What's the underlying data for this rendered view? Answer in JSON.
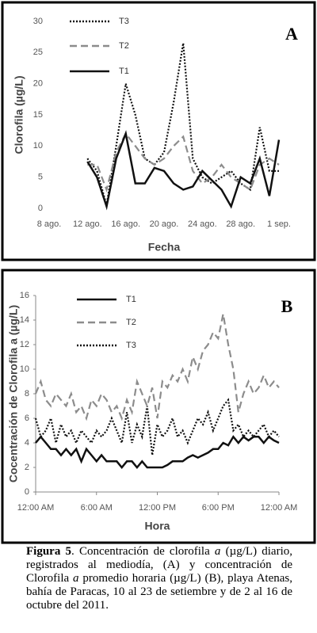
{
  "chart_data": [
    {
      "type": "line",
      "annotation": "A",
      "xlabel": "Fecha",
      "ylabel": "Clorofila (µg/L)",
      "legend": "upper left",
      "x": [
        12,
        13,
        14,
        15,
        16,
        17,
        18,
        19,
        20,
        21,
        22,
        23,
        24,
        25,
        26,
        27,
        28,
        29,
        30,
        31,
        32
      ],
      "xlim": [
        8,
        32
      ],
      "xticks": [
        {
          "value": 8,
          "label": "8 ago."
        },
        {
          "value": 12,
          "label": "12 ago."
        },
        {
          "value": 16,
          "label": "16 ago."
        },
        {
          "value": 20,
          "label": "20 ago."
        },
        {
          "value": 24,
          "label": "24 ago."
        },
        {
          "value": 28,
          "label": "28 ago."
        },
        {
          "value": 32,
          "label": "1 sep."
        }
      ],
      "ylim": [
        0,
        30
      ],
      "yticks": [
        0,
        5,
        10,
        15,
        20,
        25,
        30
      ],
      "series": [
        {
          "name": "T3",
          "color": "#111111",
          "style": "dotted",
          "values": [
            8,
            6,
            0.5,
            10,
            20,
            15,
            8,
            7,
            9,
            17,
            26.5,
            8,
            5,
            4,
            5,
            6,
            4,
            3,
            13,
            6,
            6
          ]
        },
        {
          "name": "T2",
          "color": "#8c8c8c",
          "style": "dashed",
          "values": [
            7,
            7,
            3,
            9,
            12,
            10,
            8,
            7,
            8,
            10,
            11.5,
            6,
            4,
            5,
            7,
            5,
            4,
            3,
            7,
            8,
            7
          ]
        },
        {
          "name": "T1",
          "color": "#111111",
          "style": "solid",
          "values": [
            7.5,
            5,
            0.3,
            8,
            12,
            4,
            4,
            6.5,
            6,
            4,
            3,
            3.5,
            6,
            4.5,
            3,
            0.3,
            5,
            4,
            8,
            2,
            11
          ]
        }
      ]
    },
    {
      "type": "line",
      "annotation": "B",
      "xlabel": "Hora",
      "ylabel": "Cocentración de Clorofila a (µg/L)",
      "legend": "upper left",
      "x": [
        0,
        0.5,
        1,
        1.5,
        2,
        2.5,
        3,
        3.5,
        4,
        4.5,
        5,
        5.5,
        6,
        6.5,
        7,
        7.5,
        8,
        8.5,
        9,
        9.5,
        10,
        10.5,
        11,
        11.5,
        12,
        12.5,
        13,
        13.5,
        14,
        14.5,
        15,
        15.5,
        16,
        16.5,
        17,
        17.5,
        18,
        18.5,
        19,
        19.5,
        20,
        20.5,
        21,
        21.5,
        22,
        22.5,
        23,
        23.5,
        24
      ],
      "xlim": [
        0,
        24
      ],
      "xticks": [
        {
          "value": 0,
          "label": "12:00 AM"
        },
        {
          "value": 6,
          "label": "6:00 AM"
        },
        {
          "value": 12,
          "label": "12:00 PM"
        },
        {
          "value": 18,
          "label": "6:00 PM"
        },
        {
          "value": 24,
          "label": "12:00 AM"
        }
      ],
      "ylim": [
        0,
        16
      ],
      "yticks": [
        0,
        2,
        4,
        6,
        8,
        10,
        12,
        14,
        16
      ],
      "series": [
        {
          "name": "T1",
          "color": "#111111",
          "style": "solid",
          "values": [
            4,
            4.5,
            4,
            3.5,
            3.5,
            3,
            3.5,
            3,
            3.5,
            2.5,
            3.5,
            3,
            2.5,
            3,
            2.5,
            2.5,
            2.5,
            2,
            2.5,
            2.5,
            2,
            2.5,
            2,
            2,
            2,
            2,
            2.2,
            2.5,
            2.5,
            2.5,
            2.8,
            3,
            2.8,
            3,
            3.2,
            3.5,
            3.5,
            4,
            3.8,
            4.5,
            4,
            4.5,
            4.2,
            4.5,
            4.5,
            4,
            4.5,
            4.2,
            4
          ]
        },
        {
          "name": "T2",
          "color": "#8c8c8c",
          "style": "dashed",
          "values": [
            8,
            9,
            7.5,
            7,
            8,
            7.5,
            7,
            8,
            6.5,
            7,
            6,
            7.5,
            7,
            8,
            7.5,
            6.5,
            7,
            6,
            7.5,
            6.5,
            9,
            8,
            7,
            8.5,
            6,
            9,
            8.5,
            9.5,
            9,
            10,
            9,
            11,
            10,
            11.5,
            12,
            13,
            12.5,
            14.5,
            12,
            10,
            6.5,
            8,
            9,
            8,
            8.5,
            9.5,
            8.5,
            9,
            8.5
          ]
        },
        {
          "name": "T3",
          "color": "#111111",
          "style": "dotted",
          "values": [
            6,
            4.5,
            5,
            6,
            4,
            5.5,
            4.5,
            5,
            4,
            5,
            4.5,
            4,
            5,
            4.5,
            5,
            6,
            5,
            4,
            6.5,
            4,
            5.5,
            4.5,
            7,
            3,
            5.5,
            4.5,
            5,
            6,
            4.5,
            5,
            4,
            5,
            6,
            5.5,
            6.5,
            5,
            6,
            7,
            7.5,
            5,
            5.5,
            4.5,
            5,
            4.5,
            5,
            5.5,
            4.5,
            5,
            4.5
          ]
        }
      ]
    }
  ],
  "caption": [
    "Figura 5",
    ". Concentración de clorofila ",
    "a",
    " (µg/L) diario, registrados al mediodía, (A) y concentración de Clorofila ",
    "a",
    " promedio horaria (µg/L) (B), playa Atenas, bahía de Paracas, 10 al 23 de setiembre y de 2 al 16 de octubre del 2011."
  ]
}
